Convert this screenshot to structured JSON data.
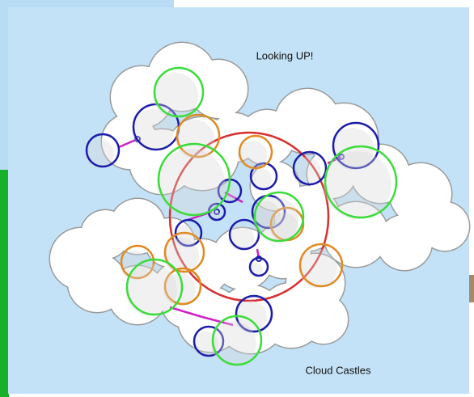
{
  "artwork": {
    "title": "Looking UP!",
    "caption": "Cloud Castles"
  }
}
